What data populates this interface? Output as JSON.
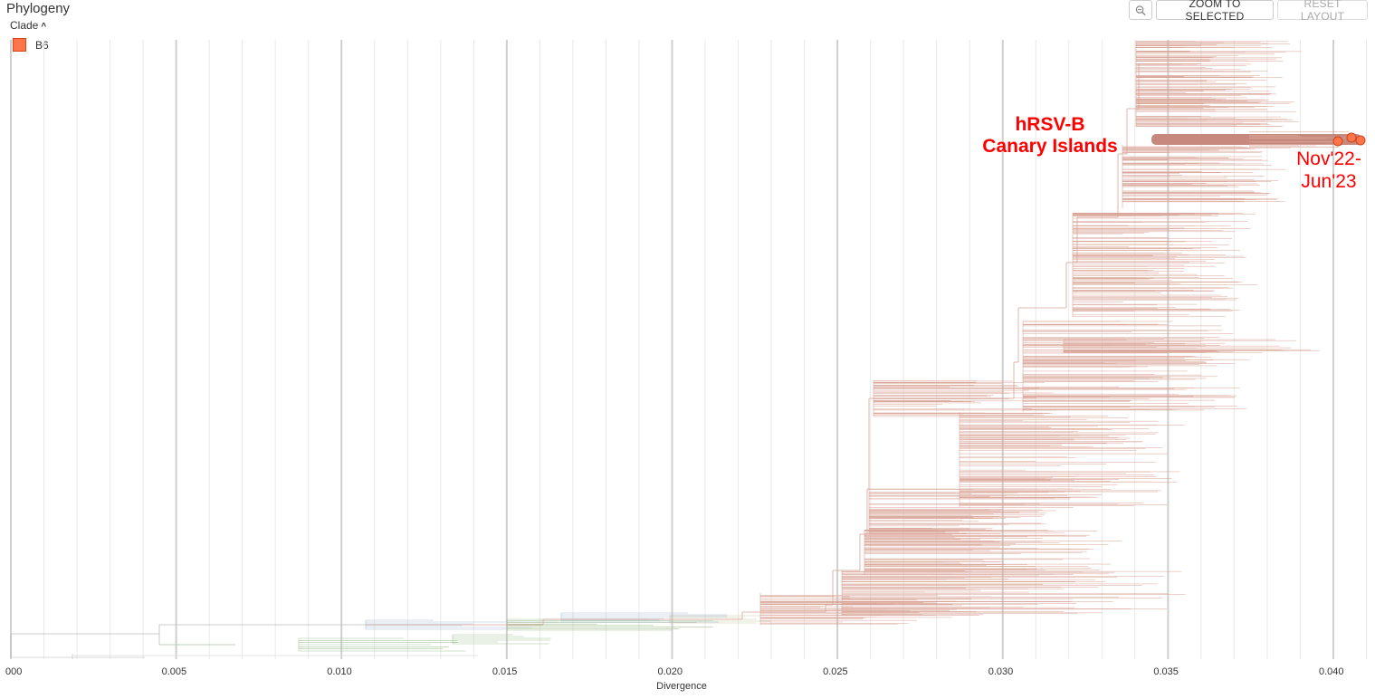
{
  "panel": {
    "title": "Phylogeny",
    "color_by_label": "Clade",
    "legend": [
      {
        "label": "B6",
        "color": "#ff7549"
      }
    ]
  },
  "toolbar": {
    "zoom_icon": "zoom-out-icon",
    "zoom_to_selected_label": "ZOOM TO SELECTED",
    "reset_layout_label": "RESET LAYOUT"
  },
  "axis": {
    "label": "Divergence",
    "ticks": [
      "000",
      "0.005",
      "0.010",
      "0.015",
      "0.020",
      "0.025",
      "0.030",
      "0.035",
      "0.040"
    ]
  },
  "annotations": {
    "region_line1": "hRSV-B",
    "region_line2": "Canary Islands",
    "date_line1": "Nov'22-",
    "date_line2": "Jun'23"
  },
  "colors": {
    "clade_b6": "#ff7549",
    "branch_main": "#d9a396",
    "branch_green": "#a8c49a",
    "branch_blue": "#a9bfd9",
    "highlight": "#c58a7d",
    "annotation": "#ff0000"
  }
}
